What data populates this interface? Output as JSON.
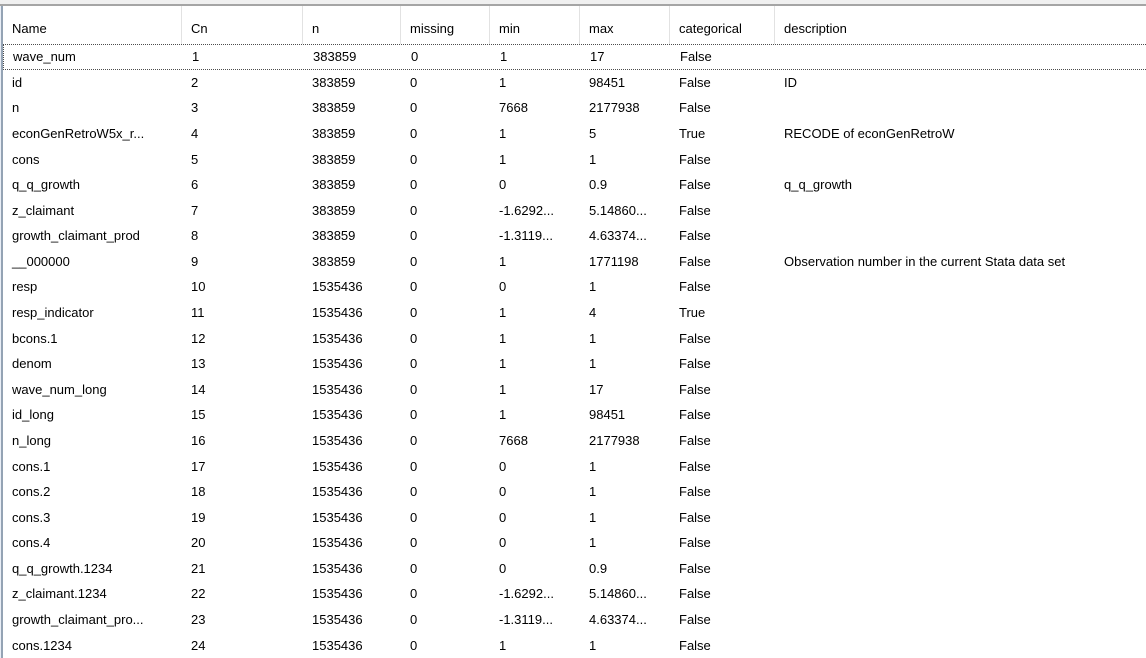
{
  "table": {
    "columns": [
      {
        "key": "name",
        "label": "Name"
      },
      {
        "key": "cn",
        "label": "Cn"
      },
      {
        "key": "n",
        "label": "n"
      },
      {
        "key": "missing",
        "label": "missing"
      },
      {
        "key": "min",
        "label": "min"
      },
      {
        "key": "max",
        "label": "max"
      },
      {
        "key": "categorical",
        "label": "categorical"
      },
      {
        "key": "description",
        "label": "description"
      }
    ],
    "focused_row_index": 0,
    "rows": [
      {
        "name": "wave_num",
        "cn": "1",
        "n": "383859",
        "missing": "0",
        "min": "1",
        "max": "17",
        "categorical": "False",
        "description": ""
      },
      {
        "name": "id",
        "cn": "2",
        "n": "383859",
        "missing": "0",
        "min": "1",
        "max": "98451",
        "categorical": "False",
        "description": "ID"
      },
      {
        "name": "n",
        "cn": "3",
        "n": "383859",
        "missing": "0",
        "min": "7668",
        "max": "2177938",
        "categorical": "False",
        "description": ""
      },
      {
        "name": "econGenRetroW5x_r...",
        "cn": "4",
        "n": "383859",
        "missing": "0",
        "min": "1",
        "max": "5",
        "categorical": "True",
        "description": "RECODE of econGenRetroW"
      },
      {
        "name": "cons",
        "cn": "5",
        "n": "383859",
        "missing": "0",
        "min": "1",
        "max": "1",
        "categorical": "False",
        "description": ""
      },
      {
        "name": "q_q_growth",
        "cn": "6",
        "n": "383859",
        "missing": "0",
        "min": "0",
        "max": "0.9",
        "categorical": "False",
        "description": "q_q_growth"
      },
      {
        "name": "z_claimant",
        "cn": "7",
        "n": "383859",
        "missing": "0",
        "min": "-1.6292...",
        "max": "5.14860...",
        "categorical": "False",
        "description": ""
      },
      {
        "name": "growth_claimant_prod",
        "cn": "8",
        "n": "383859",
        "missing": "0",
        "min": "-1.3119...",
        "max": "4.63374...",
        "categorical": "False",
        "description": ""
      },
      {
        "name": "__000000",
        "cn": "9",
        "n": "383859",
        "missing": "0",
        "min": "1",
        "max": "1771198",
        "categorical": "False",
        "description": "Observation number in the current Stata data set"
      },
      {
        "name": "resp",
        "cn": "10",
        "n": "1535436",
        "missing": "0",
        "min": "0",
        "max": "1",
        "categorical": "False",
        "description": ""
      },
      {
        "name": "resp_indicator",
        "cn": "11",
        "n": "1535436",
        "missing": "0",
        "min": "1",
        "max": "4",
        "categorical": "True",
        "description": ""
      },
      {
        "name": "bcons.1",
        "cn": "12",
        "n": "1535436",
        "missing": "0",
        "min": "1",
        "max": "1",
        "categorical": "False",
        "description": ""
      },
      {
        "name": "denom",
        "cn": "13",
        "n": "1535436",
        "missing": "0",
        "min": "1",
        "max": "1",
        "categorical": "False",
        "description": ""
      },
      {
        "name": "wave_num_long",
        "cn": "14",
        "n": "1535436",
        "missing": "0",
        "min": "1",
        "max": "17",
        "categorical": "False",
        "description": ""
      },
      {
        "name": "id_long",
        "cn": "15",
        "n": "1535436",
        "missing": "0",
        "min": "1",
        "max": "98451",
        "categorical": "False",
        "description": ""
      },
      {
        "name": "n_long",
        "cn": "16",
        "n": "1535436",
        "missing": "0",
        "min": "7668",
        "max": "2177938",
        "categorical": "False",
        "description": ""
      },
      {
        "name": "cons.1",
        "cn": "17",
        "n": "1535436",
        "missing": "0",
        "min": "0",
        "max": "1",
        "categorical": "False",
        "description": ""
      },
      {
        "name": "cons.2",
        "cn": "18",
        "n": "1535436",
        "missing": "0",
        "min": "0",
        "max": "1",
        "categorical": "False",
        "description": ""
      },
      {
        "name": "cons.3",
        "cn": "19",
        "n": "1535436",
        "missing": "0",
        "min": "0",
        "max": "1",
        "categorical": "False",
        "description": ""
      },
      {
        "name": "cons.4",
        "cn": "20",
        "n": "1535436",
        "missing": "0",
        "min": "0",
        "max": "1",
        "categorical": "False",
        "description": ""
      },
      {
        "name": "q_q_growth.1234",
        "cn": "21",
        "n": "1535436",
        "missing": "0",
        "min": "0",
        "max": "0.9",
        "categorical": "False",
        "description": ""
      },
      {
        "name": "z_claimant.1234",
        "cn": "22",
        "n": "1535436",
        "missing": "0",
        "min": "-1.6292...",
        "max": "5.14860...",
        "categorical": "False",
        "description": ""
      },
      {
        "name": "growth_claimant_pro...",
        "cn": "23",
        "n": "1535436",
        "missing": "0",
        "min": "-1.3119...",
        "max": "4.63374...",
        "categorical": "False",
        "description": ""
      },
      {
        "name": "cons.1234",
        "cn": "24",
        "n": "1535436",
        "missing": "0",
        "min": "1",
        "max": "1",
        "categorical": "False",
        "description": ""
      }
    ]
  },
  "colors": {
    "text": "#000000",
    "background": "#ffffff",
    "header_separator": "#e2e2e2",
    "window_top_strip": "#f0f0f0",
    "window_top_line": "#a5a5a5",
    "window_left_edge_light": "#e9eef6",
    "window_left_edge_dark": "#94a3b4",
    "focus_dotted": "#4d4d4d"
  }
}
